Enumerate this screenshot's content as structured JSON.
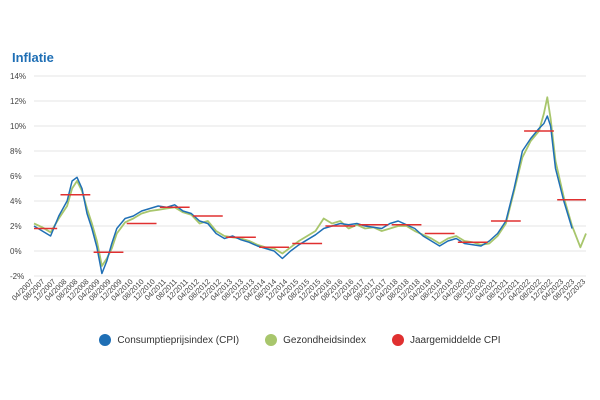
{
  "chart_data": {
    "type": "line",
    "title": "Inflatie",
    "xlabel": "",
    "ylabel": "",
    "ylim": [
      -2,
      14
    ],
    "y_ticks": [
      -2,
      0,
      2,
      4,
      6,
      8,
      10,
      12,
      14
    ],
    "y_tick_labels": [
      "-2%",
      "0%",
      "2%",
      "4%",
      "6%",
      "8%",
      "10%",
      "12%",
      "14%"
    ],
    "grid": true,
    "legend_position": "bottom",
    "x_tick_labels": [
      "04/2007",
      "08/2007",
      "12/2007",
      "04/2008",
      "08/2008",
      "12/2008",
      "04/2009",
      "08/2009",
      "12/2009",
      "04/2010",
      "08/2010",
      "12/2010",
      "04/2011",
      "08/2011",
      "12/2011",
      "04/2012",
      "08/2012",
      "12/2012",
      "04/2013",
      "08/2013",
      "12/2013",
      "04/2014",
      "08/2014",
      "12/2014",
      "04/2015",
      "08/2015",
      "12/2015",
      "04/2016",
      "08/2016",
      "12/2016",
      "04/2017",
      "08/2017",
      "12/2017",
      "04/2018",
      "08/2018",
      "12/2018",
      "04/2019",
      "08/2019",
      "12/2019",
      "04/2020",
      "08/2020",
      "12/2020",
      "04/2021",
      "08/2021",
      "12/2021",
      "04/2022",
      "08/2022",
      "12/2022",
      "04/2023",
      "08/2023",
      "12/2023"
    ],
    "series": [
      {
        "name": "Consumptieprijsindex (CPI)",
        "color": "#1f6fb5",
        "kind": "line",
        "x": [
          2007.25,
          2007.5,
          2007.75,
          2008.0,
          2008.25,
          2008.4,
          2008.55,
          2008.7,
          2008.85,
          2009.0,
          2009.15,
          2009.3,
          2009.45,
          2009.6,
          2009.75,
          2010.0,
          2010.25,
          2010.5,
          2010.75,
          2011.0,
          2011.25,
          2011.5,
          2011.75,
          2012.0,
          2012.25,
          2012.5,
          2012.75,
          2013.0,
          2013.25,
          2013.5,
          2013.75,
          2014.0,
          2014.25,
          2014.5,
          2014.75,
          2015.0,
          2015.25,
          2015.5,
          2015.75,
          2016.0,
          2016.25,
          2016.5,
          2016.75,
          2017.0,
          2017.25,
          2017.5,
          2017.75,
          2018.0,
          2018.25,
          2018.5,
          2018.75,
          2019.0,
          2019.25,
          2019.5,
          2019.75,
          2020.0,
          2020.25,
          2020.5,
          2020.75,
          2021.0,
          2021.25,
          2021.5,
          2021.75,
          2022.0,
          2022.25,
          2022.5,
          2022.65,
          2022.75,
          2022.85,
          2023.0,
          2023.25,
          2023.5
        ],
        "y": [
          2.0,
          1.6,
          1.2,
          2.8,
          4.0,
          5.6,
          5.9,
          5.0,
          3.0,
          1.8,
          0.3,
          -1.8,
          -0.8,
          0.6,
          1.8,
          2.6,
          2.8,
          3.2,
          3.4,
          3.6,
          3.5,
          3.7,
          3.2,
          3.0,
          2.4,
          2.2,
          1.4,
          1.0,
          1.2,
          0.9,
          0.7,
          0.4,
          0.2,
          0.0,
          -0.6,
          0.0,
          0.5,
          0.9,
          1.3,
          1.8,
          2.0,
          2.2,
          2.1,
          2.2,
          2.0,
          1.9,
          1.8,
          2.2,
          2.4,
          2.1,
          1.8,
          1.2,
          0.8,
          0.4,
          0.8,
          1.0,
          0.6,
          0.5,
          0.4,
          0.8,
          1.4,
          2.4,
          5.0,
          8.0,
          9.0,
          9.8,
          10.2,
          10.8,
          10.0,
          6.6,
          4.0,
          1.8
        ]
      },
      {
        "name": "Gezondheidsindex",
        "color": "#a8c66c",
        "kind": "line",
        "x": [
          2007.25,
          2007.5,
          2007.75,
          2008.0,
          2008.25,
          2008.4,
          2008.55,
          2008.7,
          2008.85,
          2009.0,
          2009.15,
          2009.3,
          2009.45,
          2009.6,
          2009.75,
          2010.0,
          2010.25,
          2010.5,
          2010.75,
          2011.0,
          2011.25,
          2011.5,
          2011.75,
          2012.0,
          2012.25,
          2012.5,
          2012.75,
          2013.0,
          2013.25,
          2013.5,
          2013.75,
          2014.0,
          2014.25,
          2014.5,
          2014.75,
          2015.0,
          2015.25,
          2015.5,
          2015.75,
          2016.0,
          2016.25,
          2016.5,
          2016.75,
          2017.0,
          2017.25,
          2017.5,
          2017.75,
          2018.0,
          2018.25,
          2018.5,
          2018.75,
          2019.0,
          2019.25,
          2019.5,
          2019.75,
          2020.0,
          2020.25,
          2020.5,
          2020.75,
          2021.0,
          2021.25,
          2021.5,
          2021.75,
          2022.0,
          2022.25,
          2022.5,
          2022.65,
          2022.75,
          2022.85,
          2023.0,
          2023.25,
          2023.5,
          2023.75,
          2023.92
        ],
        "y": [
          2.2,
          1.9,
          1.5,
          2.6,
          3.6,
          5.0,
          5.6,
          4.8,
          3.4,
          2.2,
          0.8,
          -1.2,
          -0.6,
          0.2,
          1.4,
          2.3,
          2.6,
          3.0,
          3.2,
          3.3,
          3.4,
          3.5,
          3.1,
          2.9,
          2.2,
          2.4,
          1.6,
          1.2,
          1.1,
          1.0,
          0.8,
          0.5,
          0.3,
          0.2,
          -0.2,
          0.3,
          0.8,
          1.2,
          1.6,
          2.6,
          2.2,
          2.4,
          1.8,
          2.1,
          1.8,
          1.9,
          1.6,
          1.8,
          2.0,
          2.0,
          1.6,
          1.3,
          1.0,
          0.6,
          1.0,
          1.2,
          0.8,
          0.7,
          0.5,
          0.6,
          1.2,
          2.2,
          4.8,
          7.5,
          8.8,
          9.6,
          11.0,
          12.3,
          10.6,
          7.2,
          4.3,
          2.0,
          0.3,
          1.4
        ]
      },
      {
        "name": "Jaargemiddelde CPI",
        "color": "#e03030",
        "kind": "steps",
        "years": [
          2007,
          2008,
          2009,
          2010,
          2011,
          2012,
          2013,
          2014,
          2015,
          2016,
          2017,
          2018,
          2019,
          2020,
          2021,
          2022,
          2023
        ],
        "values": [
          1.8,
          4.5,
          -0.1,
          2.2,
          3.5,
          2.8,
          1.1,
          0.3,
          0.6,
          2.0,
          2.1,
          2.1,
          1.4,
          0.7,
          2.4,
          9.6,
          4.1
        ]
      }
    ]
  }
}
